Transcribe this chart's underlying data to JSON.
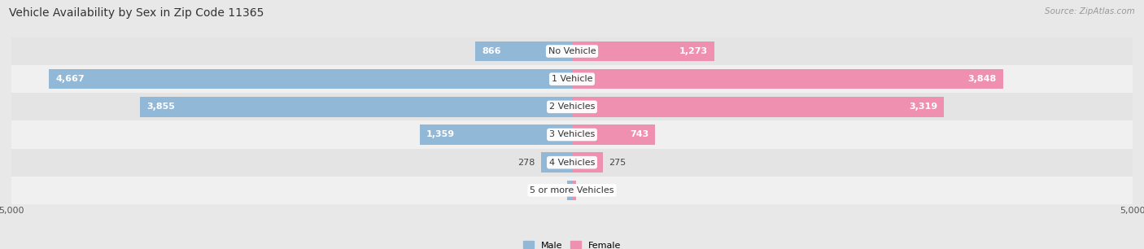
{
  "title": "Vehicle Availability by Sex in Zip Code 11365",
  "source": "Source: ZipAtlas.com",
  "categories": [
    "No Vehicle",
    "1 Vehicle",
    "2 Vehicles",
    "3 Vehicles",
    "4 Vehicles",
    "5 or more Vehicles"
  ],
  "male_values": [
    866,
    4667,
    3855,
    1359,
    278,
    45
  ],
  "female_values": [
    1273,
    3848,
    3319,
    743,
    275,
    34
  ],
  "max_val": 5000,
  "male_color": "#92b8d8",
  "male_color_dark": "#6a9fc4",
  "female_color": "#f090b0",
  "female_color_dark": "#e06898",
  "male_label": "Male",
  "female_label": "Female",
  "bg_color": "#e8e8e8",
  "row_bg_odd": "#f5f5f5",
  "row_bg_even": "#e0e0e0",
  "title_fontsize": 10,
  "source_fontsize": 7.5,
  "label_fontsize": 8,
  "category_fontsize": 8,
  "axis_fontsize": 8,
  "large_threshold": 500
}
